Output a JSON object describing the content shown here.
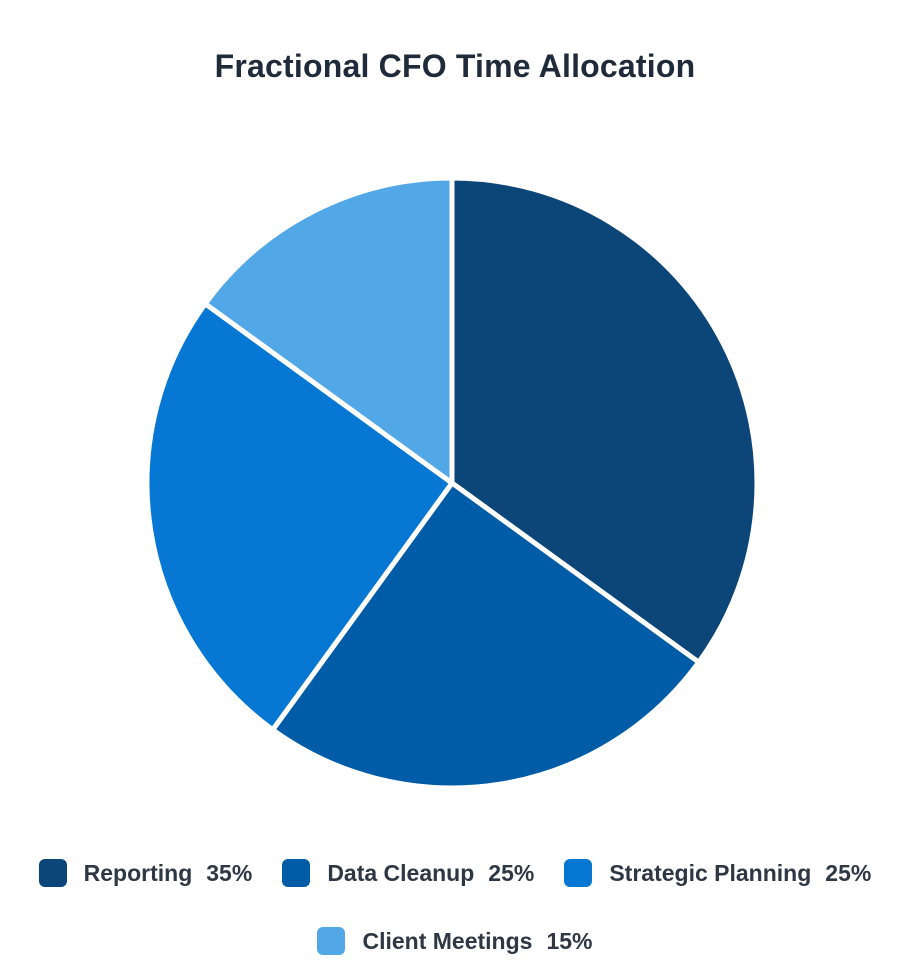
{
  "page": {
    "background": "#ffffff"
  },
  "chart_data": {
    "type": "pie",
    "title": "Fractional CFO Time Allocation",
    "start_angle_deg": 0,
    "direction": "clockwise",
    "legend_position": "bottom",
    "separator_color": "#ffffff",
    "separator_width": 5,
    "segments": [
      {
        "label": "Reporting",
        "value": 35,
        "value_label": "35%",
        "color": "#0c4577"
      },
      {
        "label": "Data Cleanup",
        "value": 25,
        "value_label": "25%",
        "color": "#005ca6"
      },
      {
        "label": "Strategic Planning",
        "value": 25,
        "value_label": "25%",
        "color": "#0678d4"
      },
      {
        "label": "Client Meetings",
        "value": 15,
        "value_label": "15%",
        "color": "#52a8e6"
      }
    ]
  }
}
